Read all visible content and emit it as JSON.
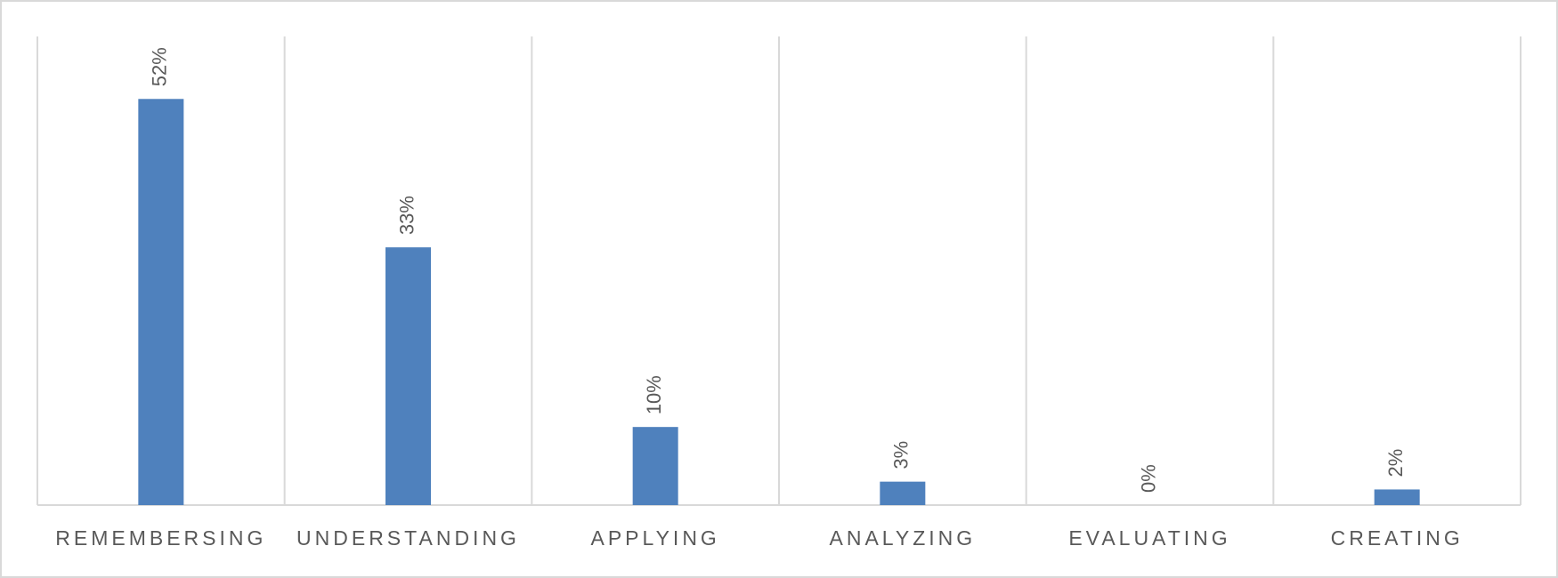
{
  "chart_data": {
    "type": "bar",
    "categories": [
      "REMEMBERSING",
      "UNDERSTANDING",
      "APPLYING",
      "ANALYZING",
      "EVALUATING",
      "CREATING"
    ],
    "values": [
      52,
      33,
      10,
      3,
      0,
      2
    ],
    "value_labels": [
      "52%",
      "33%",
      "10%",
      "3%",
      "0%",
      "2%"
    ],
    "color": "#4f81bd",
    "ylim": [
      0,
      60
    ]
  }
}
